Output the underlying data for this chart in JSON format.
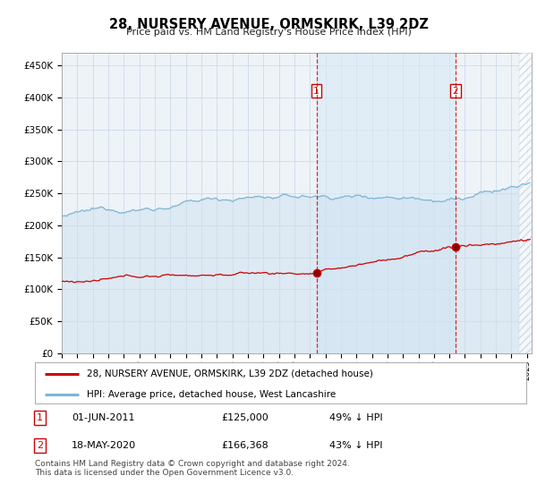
{
  "title": "28, NURSERY AVENUE, ORMSKIRK, L39 2DZ",
  "subtitle": "Price paid vs. HM Land Registry's House Price Index (HPI)",
  "ylabel_ticks": [
    "£0",
    "£50K",
    "£100K",
    "£150K",
    "£200K",
    "£250K",
    "£300K",
    "£350K",
    "£400K",
    "£450K"
  ],
  "ytick_values": [
    0,
    50000,
    100000,
    150000,
    200000,
    250000,
    300000,
    350000,
    400000,
    450000
  ],
  "ylim": [
    0,
    470000
  ],
  "xlim_start": 1995.0,
  "xlim_end": 2025.3,
  "hpi_color": "#7eb6d4",
  "hpi_fill_color": "#cde0f0",
  "price_color": "#cc0000",
  "marker1_date": 2011.42,
  "marker1_price": 125000,
  "marker1_label": "01-JUN-2011",
  "marker1_value": "£125,000",
  "marker1_pct": "49% ↓ HPI",
  "marker2_date": 2020.38,
  "marker2_price": 166368,
  "marker2_label": "18-MAY-2020",
  "marker2_value": "£166,368",
  "marker2_pct": "43% ↓ HPI",
  "legend_house": "28, NURSERY AVENUE, ORMSKIRK, L39 2DZ (detached house)",
  "legend_hpi": "HPI: Average price, detached house, West Lancashire",
  "footer": "Contains HM Land Registry data © Crown copyright and database right 2024.\nThis data is licensed under the Open Government Licence v3.0.",
  "plot_bg": "#eef3f8",
  "grid_color": "#c5d5e5"
}
